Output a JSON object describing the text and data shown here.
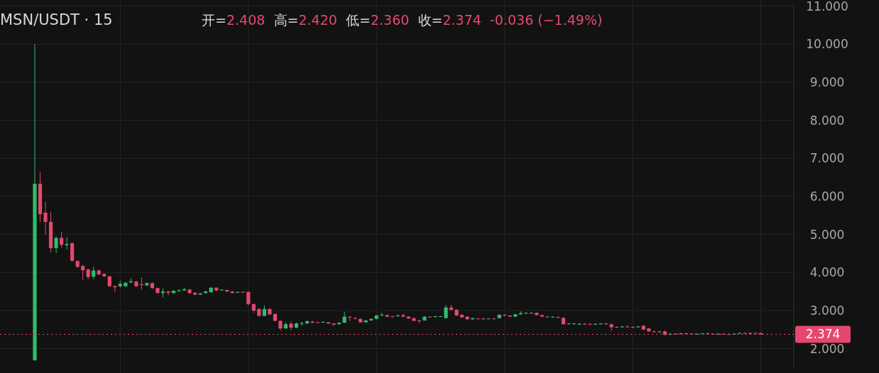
{
  "chart_data": {
    "type": "candlestick",
    "title": "MSN/USDT · 15",
    "annotations": [
      "开=2.408",
      "高=2.420",
      "低=2.360",
      "收=2.374",
      "-0.036 (−1.49%)"
    ],
    "categories": [
      null,
      null,
      null,
      null,
      null,
      null,
      null,
      null,
      null,
      null,
      null,
      null,
      null,
      null,
      null,
      null,
      null,
      null,
      null,
      null,
      null,
      null,
      null,
      null,
      null,
      null,
      null,
      null,
      null,
      null,
      null,
      null,
      null,
      null,
      null,
      null,
      null,
      null,
      null,
      null,
      null,
      null,
      null,
      null,
      null,
      null,
      null,
      null,
      null,
      null,
      null,
      null,
      null,
      null,
      null,
      null,
      null,
      null,
      null,
      null,
      null,
      null,
      null,
      null,
      null,
      null,
      null,
      null,
      null,
      null,
      null,
      null,
      null,
      null,
      null,
      null,
      null,
      null,
      null,
      null,
      null,
      null,
      null,
      null,
      null,
      null,
      null,
      null,
      null,
      null,
      null,
      null,
      null,
      null,
      null,
      null,
      null,
      null,
      null,
      null,
      null,
      null,
      null,
      null,
      null,
      null,
      null,
      null,
      null,
      null,
      null,
      null,
      null,
      null,
      null,
      null,
      null,
      null,
      null,
      null,
      null,
      null,
      null,
      null,
      null,
      null,
      null,
      null,
      null,
      null,
      null,
      null,
      null,
      null,
      null,
      null,
      null
    ],
    "ohlc": [
      [
        1.69,
        10.0,
        1.69,
        6.33
      ],
      [
        6.33,
        6.63,
        5.32,
        5.53
      ],
      [
        5.57,
        5.86,
        4.99,
        5.33
      ],
      [
        5.33,
        5.6,
        4.53,
        4.64
      ],
      [
        4.64,
        4.95,
        4.51,
        4.91
      ],
      [
        4.91,
        5.07,
        4.65,
        4.73
      ],
      [
        4.72,
        4.93,
        4.6,
        4.75
      ],
      [
        4.77,
        4.8,
        4.28,
        4.31
      ],
      [
        4.3,
        4.32,
        4.12,
        4.15
      ],
      [
        4.17,
        4.2,
        3.8,
        4.06
      ],
      [
        4.08,
        4.1,
        3.82,
        3.88
      ],
      [
        3.89,
        4.15,
        3.82,
        4.05
      ],
      [
        4.05,
        4.08,
        3.93,
        3.95
      ],
      [
        3.96,
        3.98,
        3.88,
        3.9
      ],
      [
        3.9,
        3.91,
        3.62,
        3.64
      ],
      [
        3.64,
        3.66,
        3.49,
        3.61
      ],
      [
        3.64,
        3.78,
        3.6,
        3.7
      ],
      [
        3.64,
        3.75,
        3.62,
        3.73
      ],
      [
        3.74,
        3.85,
        3.72,
        3.77
      ],
      [
        3.76,
        3.78,
        3.62,
        3.64
      ],
      [
        3.69,
        3.87,
        3.55,
        3.67
      ],
      [
        3.66,
        3.74,
        3.64,
        3.72
      ],
      [
        3.72,
        3.74,
        3.57,
        3.59
      ],
      [
        3.59,
        3.6,
        3.45,
        3.46
      ],
      [
        3.46,
        3.58,
        3.34,
        3.5
      ],
      [
        3.5,
        3.52,
        3.4,
        3.47
      ],
      [
        3.46,
        3.54,
        3.44,
        3.52
      ],
      [
        3.51,
        3.56,
        3.49,
        3.53
      ],
      [
        3.53,
        3.6,
        3.52,
        3.56
      ],
      [
        3.55,
        3.57,
        3.44,
        3.46
      ],
      [
        3.47,
        3.48,
        3.4,
        3.42
      ],
      [
        3.42,
        3.46,
        3.41,
        3.45
      ],
      [
        3.46,
        3.52,
        3.45,
        3.5
      ],
      [
        3.48,
        3.62,
        3.47,
        3.6
      ],
      [
        3.6,
        3.61,
        3.51,
        3.53
      ],
      [
        3.53,
        3.56,
        3.52,
        3.55
      ],
      [
        3.54,
        3.55,
        3.49,
        3.5
      ],
      [
        3.5,
        3.51,
        3.45,
        3.46
      ],
      [
        3.47,
        3.5,
        3.46,
        3.49
      ],
      [
        3.49,
        3.5,
        3.47,
        3.48
      ],
      [
        3.49,
        3.5,
        3.14,
        3.17
      ],
      [
        3.17,
        3.18,
        2.94,
        3.0
      ],
      [
        3.04,
        3.06,
        2.84,
        2.86
      ],
      [
        2.86,
        3.14,
        2.85,
        3.04
      ],
      [
        3.04,
        3.06,
        2.88,
        2.9
      ],
      [
        2.91,
        2.92,
        2.72,
        2.73
      ],
      [
        2.73,
        2.74,
        2.48,
        2.53
      ],
      [
        2.53,
        2.69,
        2.52,
        2.64
      ],
      [
        2.65,
        2.71,
        2.48,
        2.55
      ],
      [
        2.55,
        2.69,
        2.54,
        2.66
      ],
      [
        2.65,
        2.71,
        2.6,
        2.67
      ],
      [
        2.66,
        2.74,
        2.65,
        2.72
      ],
      [
        2.71,
        2.73,
        2.67,
        2.68
      ],
      [
        2.69,
        2.71,
        2.67,
        2.68
      ],
      [
        2.69,
        2.72,
        2.68,
        2.7
      ],
      [
        2.69,
        2.7,
        2.65,
        2.66
      ],
      [
        2.66,
        2.67,
        2.6,
        2.63
      ],
      [
        2.64,
        2.69,
        2.63,
        2.68
      ],
      [
        2.68,
        2.97,
        2.67,
        2.84
      ],
      [
        2.84,
        2.85,
        2.72,
        2.82
      ],
      [
        2.8,
        2.82,
        2.77,
        2.78
      ],
      [
        2.78,
        2.79,
        2.68,
        2.69
      ],
      [
        2.69,
        2.75,
        2.68,
        2.74
      ],
      [
        2.74,
        2.79,
        2.73,
        2.78
      ],
      [
        2.78,
        2.88,
        2.77,
        2.87
      ],
      [
        2.87,
        2.94,
        2.85,
        2.89
      ],
      [
        2.88,
        2.89,
        2.82,
        2.84
      ],
      [
        2.85,
        2.86,
        2.82,
        2.84
      ],
      [
        2.85,
        2.9,
        2.84,
        2.87
      ],
      [
        2.88,
        2.92,
        2.83,
        2.84
      ],
      [
        2.84,
        2.85,
        2.78,
        2.79
      ],
      [
        2.8,
        2.81,
        2.72,
        2.73
      ],
      [
        2.74,
        2.75,
        2.67,
        2.72
      ],
      [
        2.74,
        2.85,
        2.73,
        2.84
      ],
      [
        2.84,
        2.85,
        2.82,
        2.83
      ],
      [
        2.83,
        2.86,
        2.82,
        2.85
      ],
      [
        2.84,
        2.86,
        2.83,
        2.85
      ],
      [
        2.8,
        3.15,
        2.79,
        3.08
      ],
      [
        3.08,
        3.15,
        3.0,
        3.02
      ],
      [
        3.02,
        3.03,
        2.86,
        2.87
      ],
      [
        2.89,
        2.9,
        2.81,
        2.82
      ],
      [
        2.84,
        2.85,
        2.76,
        2.77
      ],
      [
        2.77,
        2.81,
        2.76,
        2.8
      ],
      [
        2.79,
        2.8,
        2.77,
        2.78
      ],
      [
        2.79,
        2.8,
        2.76,
        2.77
      ],
      [
        2.78,
        2.8,
        2.77,
        2.79
      ],
      [
        2.79,
        2.8,
        2.77,
        2.78
      ],
      [
        2.8,
        2.9,
        2.79,
        2.89
      ],
      [
        2.89,
        2.9,
        2.85,
        2.87
      ],
      [
        2.87,
        2.88,
        2.83,
        2.84
      ],
      [
        2.84,
        2.91,
        2.83,
        2.9
      ],
      [
        2.9,
        2.98,
        2.89,
        2.93
      ],
      [
        2.93,
        2.95,
        2.91,
        2.94
      ],
      [
        2.93,
        2.95,
        2.92,
        2.94
      ],
      [
        2.94,
        2.95,
        2.87,
        2.88
      ],
      [
        2.88,
        2.89,
        2.83,
        2.84
      ],
      [
        2.84,
        2.86,
        2.82,
        2.83
      ],
      [
        2.82,
        2.85,
        2.81,
        2.84
      ],
      [
        2.83,
        2.84,
        2.8,
        2.81
      ],
      [
        2.81,
        2.82,
        2.63,
        2.64
      ],
      [
        2.66,
        2.68,
        2.63,
        2.65
      ],
      [
        2.65,
        2.67,
        2.63,
        2.66
      ],
      [
        2.63,
        2.67,
        2.62,
        2.65
      ],
      [
        2.65,
        2.67,
        2.63,
        2.64
      ],
      [
        2.65,
        2.66,
        2.62,
        2.63
      ],
      [
        2.63,
        2.66,
        2.62,
        2.65
      ],
      [
        2.64,
        2.67,
        2.63,
        2.66
      ],
      [
        2.66,
        2.67,
        2.63,
        2.64
      ],
      [
        2.64,
        2.65,
        2.46,
        2.56
      ],
      [
        2.57,
        2.59,
        2.55,
        2.56
      ],
      [
        2.56,
        2.6,
        2.55,
        2.58
      ],
      [
        2.58,
        2.6,
        2.55,
        2.57
      ],
      [
        2.57,
        2.59,
        2.54,
        2.56
      ],
      [
        2.56,
        2.59,
        2.55,
        2.58
      ],
      [
        2.6,
        2.62,
        2.49,
        2.5
      ],
      [
        2.53,
        2.55,
        2.44,
        2.45
      ],
      [
        2.45,
        2.47,
        2.42,
        2.44
      ],
      [
        2.44,
        2.46,
        2.42,
        2.45
      ],
      [
        2.45,
        2.47,
        2.35,
        2.36
      ],
      [
        2.37,
        2.4,
        2.35,
        2.39
      ],
      [
        2.39,
        2.41,
        2.37,
        2.38
      ],
      [
        2.38,
        2.41,
        2.37,
        2.4
      ],
      [
        2.4,
        2.42,
        2.38,
        2.39
      ],
      [
        2.39,
        2.41,
        2.37,
        2.38
      ],
      [
        2.38,
        2.4,
        2.36,
        2.39
      ],
      [
        2.39,
        2.41,
        2.38,
        2.4
      ],
      [
        2.4,
        2.42,
        2.38,
        2.39
      ],
      [
        2.39,
        2.4,
        2.36,
        2.37
      ],
      [
        2.37,
        2.4,
        2.36,
        2.39
      ],
      [
        2.39,
        2.41,
        2.37,
        2.38
      ],
      [
        2.38,
        2.4,
        2.36,
        2.37
      ],
      [
        2.37,
        2.4,
        2.36,
        2.39
      ],
      [
        2.39,
        2.42,
        2.38,
        2.41
      ],
      [
        2.41,
        2.43,
        2.39,
        2.4
      ],
      [
        2.4,
        2.42,
        2.38,
        2.41
      ],
      [
        2.41,
        2.42,
        2.39,
        2.408
      ],
      [
        2.408,
        2.42,
        2.36,
        2.374
      ]
    ],
    "colors": [
      "#2ebd6e",
      "#e5486e",
      "#e5486e",
      "#e5486e",
      "#2ebd6e",
      "#e5486e",
      "#2ebd6e",
      "#e5486e",
      "#e5486e",
      "#e5486e",
      "#e5486e",
      "#2ebd6e",
      "#e5486e",
      "#e5486e",
      "#e5486e",
      "#e5486e",
      "#2ebd6e",
      "#2ebd6e",
      "#2ebd6e",
      "#e5486e",
      "#e5486e",
      "#2ebd6e",
      "#e5486e",
      "#e5486e",
      "#2ebd6e",
      "#e5486e",
      "#2ebd6e",
      "#2ebd6e",
      "#2ebd6e",
      "#e5486e",
      "#e5486e",
      "#2ebd6e",
      "#2ebd6e",
      "#2ebd6e",
      "#e5486e",
      "#2ebd6e",
      "#e5486e",
      "#e5486e",
      "#2ebd6e",
      "#e5486e",
      "#e5486e",
      "#e5486e",
      "#e5486e",
      "#2ebd6e",
      "#e5486e",
      "#e5486e",
      "#e5486e",
      "#2ebd6e",
      "#e5486e",
      "#2ebd6e",
      "#2ebd6e",
      "#2ebd6e",
      "#e5486e",
      "#e5486e",
      "#2ebd6e",
      "#e5486e",
      "#e5486e",
      "#2ebd6e",
      "#2ebd6e",
      "#e5486e",
      "#e5486e",
      "#e5486e",
      "#2ebd6e",
      "#2ebd6e",
      "#2ebd6e",
      "#2ebd6e",
      "#e5486e",
      "#e5486e",
      "#2ebd6e",
      "#e5486e",
      "#e5486e",
      "#e5486e",
      "#e5486e",
      "#2ebd6e",
      "#e5486e",
      "#2ebd6e",
      "#2ebd6e",
      "#2ebd6e",
      "#e5486e",
      "#e5486e",
      "#e5486e",
      "#e5486e",
      "#2ebd6e",
      "#e5486e",
      "#e5486e",
      "#2ebd6e",
      "#e5486e",
      "#2ebd6e",
      "#e5486e",
      "#e5486e",
      "#2ebd6e",
      "#2ebd6e",
      "#2ebd6e",
      "#2ebd6e",
      "#e5486e",
      "#e5486e",
      "#e5486e",
      "#2ebd6e",
      "#e5486e",
      "#e5486e",
      "#e5486e",
      "#2ebd6e",
      "#2ebd6e",
      "#e5486e",
      "#e5486e",
      "#2ebd6e",
      "#2ebd6e",
      "#e5486e",
      "#e5486e",
      "#e5486e",
      "#2ebd6e",
      "#e5486e",
      "#e5486e",
      "#2ebd6e",
      "#e5486e",
      "#e5486e",
      "#e5486e",
      "#2ebd6e",
      "#e5486e",
      "#2ebd6e",
      "#e5486e",
      "#2ebd6e",
      "#e5486e",
      "#e5486e",
      "#2ebd6e",
      "#2ebd6e",
      "#e5486e",
      "#e5486e",
      "#2ebd6e",
      "#e5486e",
      "#e5486e",
      "#2ebd6e",
      "#2ebd6e",
      "#e5486e",
      "#2ebd6e",
      "#e5486e",
      "#e5486e"
    ],
    "ylim": [
      1.47,
      11.05
    ],
    "yticks": [
      {
        "value": 2,
        "label": "2.000"
      },
      {
        "value": 3,
        "label": "3.000"
      },
      {
        "value": 4,
        "label": "4.000"
      },
      {
        "value": 5,
        "label": "5.000"
      },
      {
        "value": 6,
        "label": "6.000"
      },
      {
        "value": 7,
        "label": "7.000"
      },
      {
        "value": 8,
        "label": "8.000"
      },
      {
        "value": 9,
        "label": "9.000"
      },
      {
        "value": 10,
        "label": "10.000"
      },
      {
        "value": 11,
        "label": "11.000"
      }
    ],
    "grid": true,
    "ref_lines": [
      {
        "axis": "y",
        "value": 2.374,
        "label": "2.374",
        "color": "#e5486e",
        "line_style": "dotted"
      }
    ]
  }
}
